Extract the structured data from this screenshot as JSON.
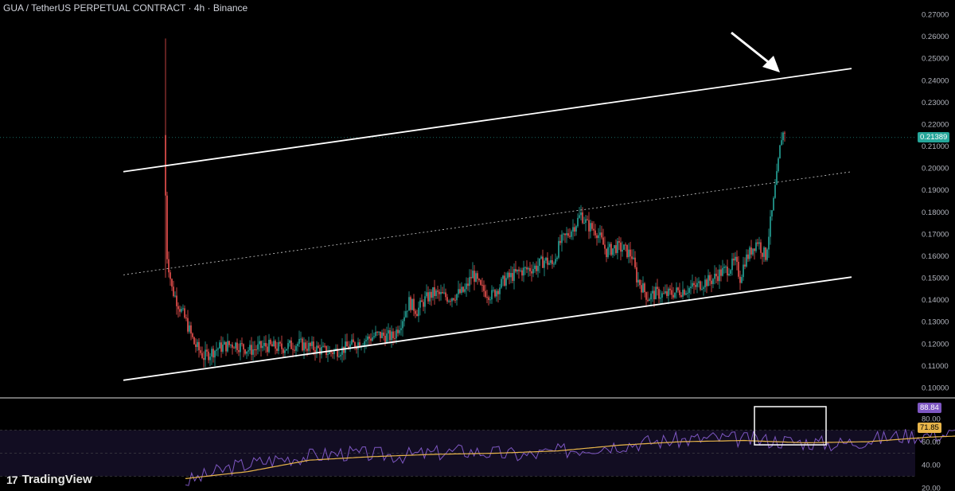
{
  "header": {
    "title": "GUA / TetherUS PERPETUAL CONTRACT · 4h · Binance"
  },
  "branding": {
    "logo_mark": "17",
    "logo_text": "TradingView"
  },
  "colors": {
    "background": "#000000",
    "up": "#26a69a",
    "down": "#ef5350",
    "rsi": "#7e57c2",
    "rsi_ma": "#e8b54a",
    "line": "#ffffff",
    "axis_text": "#b2b5be"
  },
  "chart_data": [
    {
      "type": "candlestick",
      "title": "GUA / TetherUS PERPETUAL CONTRACT · 4h · Binance",
      "ylim": [
        0.095,
        0.27
      ],
      "y_ticks": [
        "0.27000",
        "0.26000",
        "0.25000",
        "0.24000",
        "0.23000",
        "0.22000",
        "0.21000",
        "0.20000",
        "0.19000",
        "0.18000",
        "0.17000",
        "0.16000",
        "0.15000",
        "0.14000",
        "0.13000",
        "0.12000",
        "0.11000",
        "0.10000"
      ],
      "last_price": "0.21389",
      "grid": false,
      "price_path": [
        [
          0,
          0.215
        ],
        [
          2,
          0.16
        ],
        [
          5,
          0.145
        ],
        [
          9,
          0.138
        ],
        [
          14,
          0.13
        ],
        [
          19,
          0.12
        ],
        [
          25,
          0.114
        ],
        [
          34,
          0.118
        ],
        [
          44,
          0.12
        ],
        [
          54,
          0.117
        ],
        [
          64,
          0.119
        ],
        [
          74,
          0.118
        ],
        [
          84,
          0.12
        ],
        [
          94,
          0.118
        ],
        [
          104,
          0.116
        ],
        [
          114,
          0.118
        ],
        [
          124,
          0.121
        ],
        [
          134,
          0.124
        ],
        [
          144,
          0.123
        ],
        [
          149,
          0.13
        ],
        [
          154,
          0.139
        ],
        [
          159,
          0.135
        ],
        [
          164,
          0.14
        ],
        [
          169,
          0.143
        ],
        [
          179,
          0.141
        ],
        [
          189,
          0.144
        ],
        [
          194,
          0.152
        ],
        [
          199,
          0.145
        ],
        [
          206,
          0.142
        ],
        [
          214,
          0.149
        ],
        [
          224,
          0.153
        ],
        [
          234,
          0.155
        ],
        [
          239,
          0.158
        ],
        [
          244,
          0.156
        ],
        [
          249,
          0.166
        ],
        [
          254,
          0.17
        ],
        [
          259,
          0.175
        ],
        [
          262,
          0.179
        ],
        [
          266,
          0.174
        ],
        [
          272,
          0.171
        ],
        [
          278,
          0.162
        ],
        [
          284,
          0.164
        ],
        [
          289,
          0.163
        ],
        [
          294,
          0.16
        ],
        [
          297,
          0.15
        ],
        [
          301,
          0.145
        ],
        [
          304,
          0.141
        ],
        [
          309,
          0.143
        ],
        [
          314,
          0.142
        ],
        [
          319,
          0.143
        ],
        [
          324,
          0.144
        ],
        [
          329,
          0.145
        ],
        [
          334,
          0.146
        ],
        [
          339,
          0.148
        ],
        [
          344,
          0.149
        ],
        [
          349,
          0.152
        ],
        [
          354,
          0.154
        ],
        [
          359,
          0.157
        ],
        [
          362,
          0.15
        ],
        [
          365,
          0.158
        ],
        [
          367,
          0.16
        ],
        [
          370,
          0.164
        ],
        [
          373,
          0.167
        ],
        [
          376,
          0.162
        ],
        [
          378,
          0.16
        ],
        [
          381,
          0.175
        ],
        [
          383,
          0.186
        ],
        [
          385,
          0.198
        ],
        [
          387,
          0.21
        ],
        [
          389,
          0.216
        ]
      ],
      "channel": {
        "lower": {
          "from": [
            -20,
            0.104
          ],
          "to": [
            389,
            0.146
          ]
        },
        "upper": {
          "from": [
            -20,
            0.199
          ],
          "to": [
            389,
            0.241
          ]
        },
        "mid": {
          "from": [
            -20,
            0.152
          ],
          "to": [
            389,
            0.194
          ],
          "style": "dotted"
        }
      },
      "annotation": "arrow pointing to upper channel line"
    },
    {
      "type": "line",
      "name": "RSI",
      "ylim": [
        20,
        90
      ],
      "y_ticks": [
        "80.00",
        "60.00",
        "40.00",
        "20.00"
      ],
      "rsi_value": "88.84",
      "ma_value": "71.85",
      "bands": [
        30,
        70
      ],
      "rsi_path": [
        [
          0,
          25
        ],
        [
          15,
          38
        ],
        [
          30,
          45
        ],
        [
          50,
          50
        ],
        [
          70,
          48
        ],
        [
          90,
          52
        ],
        [
          110,
          48
        ],
        [
          130,
          55
        ],
        [
          150,
          60
        ],
        [
          170,
          63
        ],
        [
          190,
          61
        ],
        [
          210,
          58
        ],
        [
          230,
          65
        ],
        [
          250,
          67
        ],
        [
          262,
          70
        ],
        [
          272,
          60
        ],
        [
          282,
          52
        ],
        [
          292,
          45
        ],
        [
          302,
          33
        ],
        [
          312,
          35
        ],
        [
          322,
          45
        ],
        [
          332,
          52
        ],
        [
          342,
          55
        ],
        [
          352,
          60
        ],
        [
          360,
          57
        ],
        [
          366,
          66
        ],
        [
          372,
          60
        ],
        [
          378,
          62
        ],
        [
          383,
          74
        ],
        [
          387,
          83
        ],
        [
          389,
          89
        ]
      ],
      "ma_path": [
        [
          0,
          28
        ],
        [
          20,
          34
        ],
        [
          40,
          44
        ],
        [
          60,
          47
        ],
        [
          80,
          49
        ],
        [
          100,
          50
        ],
        [
          120,
          52
        ],
        [
          140,
          57
        ],
        [
          160,
          60
        ],
        [
          180,
          61
        ],
        [
          200,
          59
        ],
        [
          220,
          60
        ],
        [
          240,
          64
        ],
        [
          260,
          66
        ],
        [
          275,
          62
        ],
        [
          290,
          55
        ],
        [
          305,
          44
        ],
        [
          315,
          38
        ],
        [
          325,
          42
        ],
        [
          340,
          50
        ],
        [
          355,
          56
        ],
        [
          370,
          58
        ],
        [
          380,
          62
        ],
        [
          389,
          72
        ]
      ],
      "highlight_box": true
    }
  ]
}
